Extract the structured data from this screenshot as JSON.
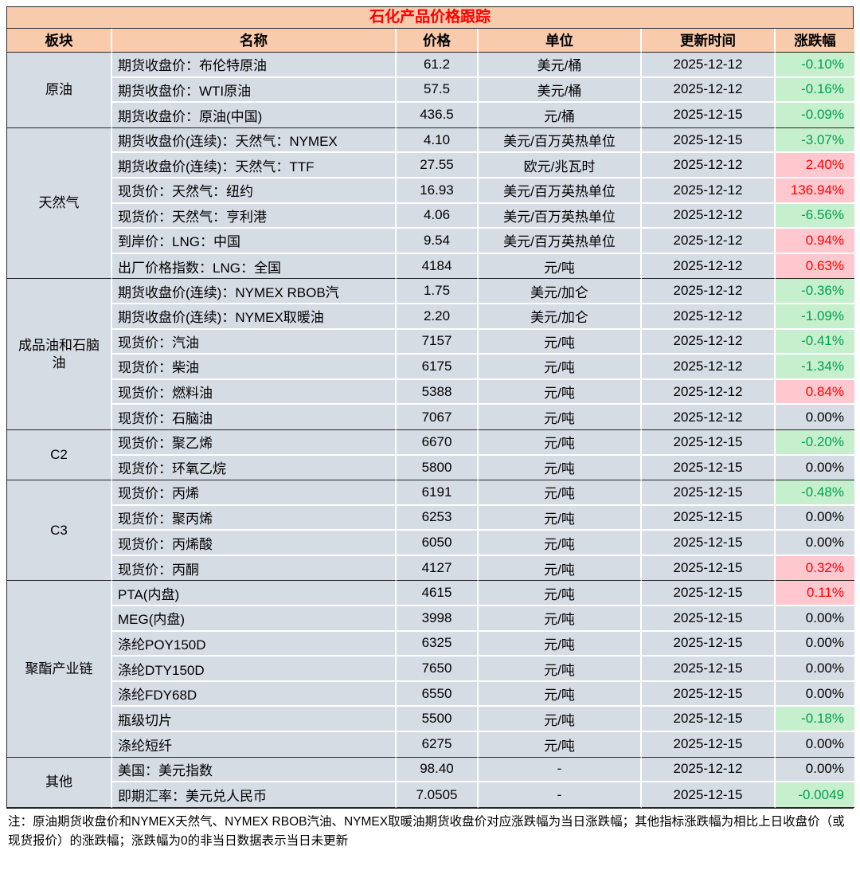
{
  "chart_data": {
    "type": "table",
    "title": "石化产品价格跟踪",
    "columns": [
      "板块",
      "名称",
      "价格",
      "单位",
      "更新时间",
      "涨跌幅"
    ],
    "groups": [
      {
        "sector": "原油",
        "rows": [
          {
            "name": "期货收盘价：布伦特原油",
            "price": "61.2",
            "unit": "美元/桶",
            "date": "2025-12-12",
            "change": "-0.10%"
          },
          {
            "name": "期货收盘价：WTI原油",
            "price": "57.5",
            "unit": "美元/桶",
            "date": "2025-12-12",
            "change": "-0.16%"
          },
          {
            "name": "期货收盘价：原油(中国)",
            "price": "436.5",
            "unit": "元/桶",
            "date": "2025-12-15",
            "change": "-0.09%"
          }
        ]
      },
      {
        "sector": "天然气",
        "rows": [
          {
            "name": "期货收盘价(连续)：天然气：NYMEX",
            "price": "4.10",
            "unit": "美元/百万英热单位",
            "date": "2025-12-15",
            "change": "-3.07%"
          },
          {
            "name": "期货收盘价(连续)：天然气：TTF",
            "price": "27.55",
            "unit": "欧元/兆瓦时",
            "date": "2025-12-12",
            "change": "2.40%"
          },
          {
            "name": "现货价：天然气：纽约",
            "price": "16.93",
            "unit": "美元/百万英热单位",
            "date": "2025-12-12",
            "change": "136.94%"
          },
          {
            "name": "现货价：天然气：亨利港",
            "price": "4.06",
            "unit": "美元/百万英热单位",
            "date": "2025-12-12",
            "change": "-6.56%"
          },
          {
            "name": "到岸价：LNG：中国",
            "price": "9.54",
            "unit": "美元/百万英热单位",
            "date": "2025-12-12",
            "change": "0.94%"
          },
          {
            "name": "出厂价格指数：LNG：全国",
            "price": "4184",
            "unit": "元/吨",
            "date": "2025-12-12",
            "change": "0.63%"
          }
        ]
      },
      {
        "sector": "成品油和石脑油",
        "rows": [
          {
            "name": "期货收盘价(连续)：NYMEX RBOB汽",
            "price": "1.75",
            "unit": "美元/加仑",
            "date": "2025-12-12",
            "change": "-0.36%"
          },
          {
            "name": "期货收盘价(连续)：NYMEX取暖油",
            "price": "2.20",
            "unit": "美元/加仑",
            "date": "2025-12-12",
            "change": "-1.09%"
          },
          {
            "name": "现货价：汽油",
            "price": "7157",
            "unit": "元/吨",
            "date": "2025-12-12",
            "change": "-0.41%"
          },
          {
            "name": "现货价：柴油",
            "price": "6175",
            "unit": "元/吨",
            "date": "2025-12-12",
            "change": "-1.34%"
          },
          {
            "name": "现货价：燃料油",
            "price": "5388",
            "unit": "元/吨",
            "date": "2025-12-12",
            "change": "0.84%"
          },
          {
            "name": "现货价：石脑油",
            "price": "7067",
            "unit": "元/吨",
            "date": "2025-12-12",
            "change": "0.00%"
          }
        ]
      },
      {
        "sector": "C2",
        "rows": [
          {
            "name": "现货价：聚乙烯",
            "price": "6670",
            "unit": "元/吨",
            "date": "2025-12-15",
            "change": "-0.20%"
          },
          {
            "name": "现货价：环氧乙烷",
            "price": "5800",
            "unit": "元/吨",
            "date": "2025-12-15",
            "change": "0.00%"
          }
        ]
      },
      {
        "sector": "C3",
        "rows": [
          {
            "name": "现货价：丙烯",
            "price": "6191",
            "unit": "元/吨",
            "date": "2025-12-15",
            "change": "-0.48%"
          },
          {
            "name": "现货价：聚丙烯",
            "price": "6253",
            "unit": "元/吨",
            "date": "2025-12-15",
            "change": "0.00%"
          },
          {
            "name": "现货价：丙烯酸",
            "price": "6050",
            "unit": "元/吨",
            "date": "2025-12-15",
            "change": "0.00%"
          },
          {
            "name": "现货价：丙酮",
            "price": "4127",
            "unit": "元/吨",
            "date": "2025-12-15",
            "change": "0.32%"
          }
        ]
      },
      {
        "sector": "聚酯产业链",
        "rows": [
          {
            "name": "PTA(内盘)",
            "price": "4615",
            "unit": "元/吨",
            "date": "2025-12-15",
            "change": "0.11%"
          },
          {
            "name": "MEG(内盘)",
            "price": "3998",
            "unit": "元/吨",
            "date": "2025-12-15",
            "change": "0.00%"
          },
          {
            "name": "涤纶POY150D",
            "price": "6325",
            "unit": "元/吨",
            "date": "2025-12-15",
            "change": "0.00%"
          },
          {
            "name": "涤纶DTY150D",
            "price": "7650",
            "unit": "元/吨",
            "date": "2025-12-15",
            "change": "0.00%"
          },
          {
            "name": "涤纶FDY68D",
            "price": "6550",
            "unit": "元/吨",
            "date": "2025-12-15",
            "change": "0.00%"
          },
          {
            "name": "瓶级切片",
            "price": "5500",
            "unit": "元/吨",
            "date": "2025-12-15",
            "change": "-0.18%"
          },
          {
            "name": "涤纶短纤",
            "price": "6275",
            "unit": "元/吨",
            "date": "2025-12-15",
            "change": "0.00%"
          }
        ]
      },
      {
        "sector": "其他",
        "rows": [
          {
            "name": "美国：美元指数",
            "price": "98.40",
            "unit": "-",
            "date": "2025-12-12",
            "change": "0.00%"
          },
          {
            "name": "即期汇率：美元兑人民币",
            "price": "7.0505",
            "unit": "-",
            "date": "2025-12-15",
            "change": "-0.0049"
          }
        ]
      }
    ],
    "footnote": "注：原油期货收盘价和NYMEX天然气、NYMEX RBOB汽油、NYMEX取暖油期货收盘价对应涨跌幅为当日涨跌幅；其他指标涨跌幅为相比上日收盘价（或现货报价）的涨跌幅；涨跌幅为0的非当日数据表示当日未更新",
    "colors": {
      "title_text": "#FF0000",
      "header_bg": "#F8CBAD",
      "body_bg": "#D6DCE4",
      "positive_bg": "#FFC7CE",
      "positive_text": "#FF0000",
      "negative_bg": "#C6EFCE",
      "negative_text": "#00A04A",
      "grid_line": "#FFFFFF",
      "border_line": "#262626"
    }
  }
}
